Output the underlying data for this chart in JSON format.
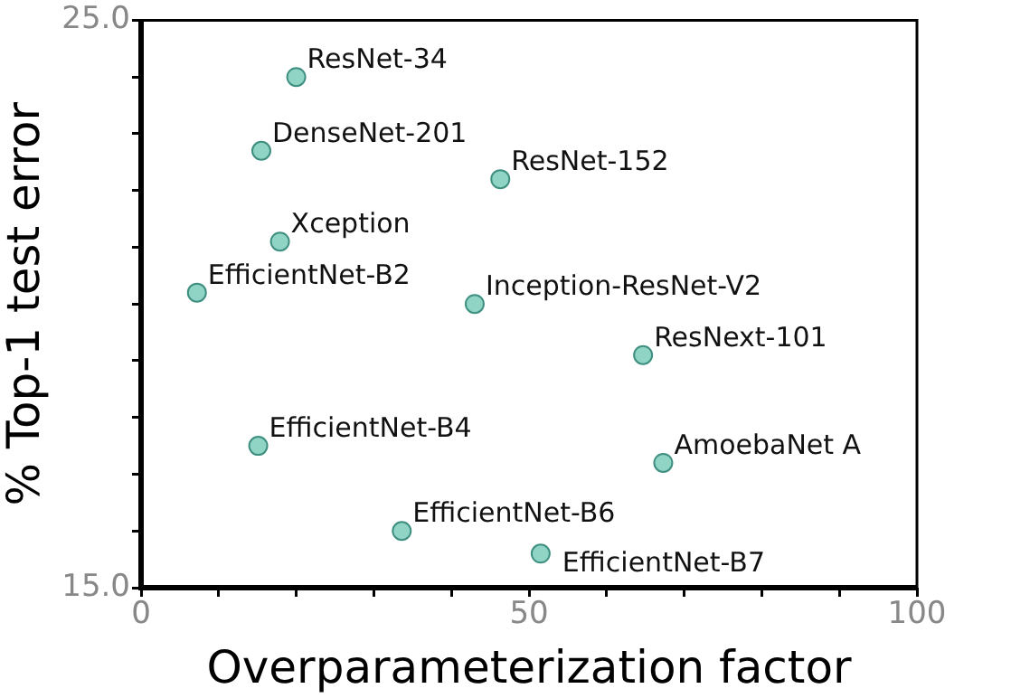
{
  "chart_data": {
    "type": "scatter",
    "xlabel": "Overparameterization factor",
    "ylabel": "% Top-1 test error",
    "series": [
      {
        "color": "#90d4c5",
        "x": [
          20.0,
          15.5,
          46.3,
          17.9,
          7.2,
          43.0,
          64.7,
          15.1,
          67.3,
          33.6,
          51.5
        ],
        "values": [
          24.0,
          22.7,
          22.2,
          21.1,
          20.2,
          20.0,
          19.1,
          17.5,
          17.2,
          16.0,
          15.6
        ]
      }
    ],
    "annotations": [
      {
        "text": "ResNet-34",
        "x": 20.0,
        "y": 24.0
      },
      {
        "text": "DenseNet-201",
        "x": 15.5,
        "y": 22.7
      },
      {
        "text": "ResNet-152",
        "x": 46.3,
        "y": 22.2
      },
      {
        "text": "Xception",
        "x": 17.9,
        "y": 21.1
      },
      {
        "text": "EfficientNet-B2",
        "x": 7.2,
        "y": 20.2
      },
      {
        "text": "Inception-ResNet-V2",
        "x": 43.0,
        "y": 20.0
      },
      {
        "text": "ResNext-101",
        "x": 64.7,
        "y": 19.1
      },
      {
        "text": "EfficientNet-B4",
        "x": 15.1,
        "y": 17.5
      },
      {
        "text": "AmoebaNet A",
        "x": 67.3,
        "y": 17.2
      },
      {
        "text": "EfficientNet-B6",
        "x": 33.6,
        "y": 16.0
      },
      {
        "text": "EfficientNet-B7",
        "x": 51.5,
        "y": 15.6
      }
    ],
    "xlim": [
      0,
      100
    ],
    "xticks": [
      0,
      {
        "value": 10,
        "label": null
      },
      {
        "value": 20,
        "label": null
      },
      {
        "value": 30,
        "label": null
      },
      {
        "value": 40,
        "label": null
      },
      50,
      {
        "value": 60,
        "label": null
      },
      {
        "value": 70,
        "label": null
      },
      {
        "value": 80,
        "label": null
      },
      {
        "value": 90,
        "label": null
      },
      100
    ],
    "ylim": [
      15,
      25
    ],
    "yticks": [
      {
        "value": 15,
        "label": "15.0"
      },
      {
        "value": 16,
        "label": null
      },
      {
        "value": 17,
        "label": null
      },
      {
        "value": 18,
        "label": null
      },
      {
        "value": 19,
        "label": null
      },
      {
        "value": 20,
        "label": null
      },
      {
        "value": 21,
        "label": null
      },
      {
        "value": 22,
        "label": null
      },
      {
        "value": 23,
        "label": null
      },
      {
        "value": 24,
        "label": null
      },
      {
        "value": 25,
        "label": "25.0"
      }
    ],
    "grid": false,
    "legend": false,
    "marker": "circle"
  }
}
